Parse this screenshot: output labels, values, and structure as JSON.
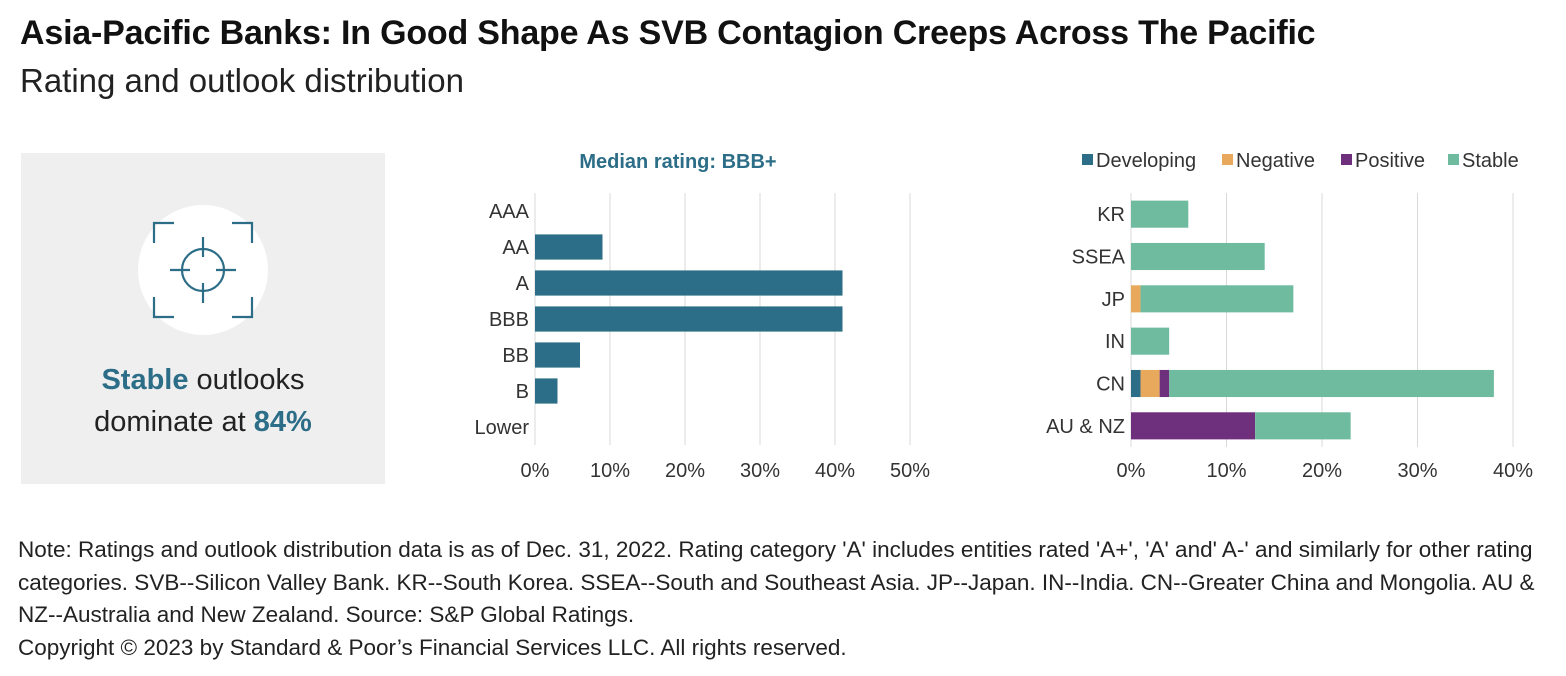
{
  "title": "Asia-Pacific Banks: In Good Shape As SVB Contagion Creeps Across The Pacific",
  "subtitle": "Rating and outlook distribution",
  "callout": {
    "icon": "crosshair-target-icon",
    "highlight": "Stable",
    "text_mid": " outlooks",
    "text_line2": "dominate at ",
    "value": "84%"
  },
  "colors": {
    "developing": "#2c6d87",
    "negative": "#e8a95c",
    "positive": "#6e2f7d",
    "stable": "#6fbba0",
    "gridline": "#d9d9d9",
    "callout_bg": "#efefef"
  },
  "chart_data": [
    {
      "type": "bar",
      "orientation": "horizontal",
      "title": "Median rating: BBB+",
      "categories": [
        "AAA",
        "AA",
        "A",
        "BBB",
        "BB",
        "B",
        "Lower"
      ],
      "values": [
        0,
        9,
        41,
        41,
        6,
        3,
        0
      ],
      "xlim": [
        0,
        50
      ],
      "x_ticks": [
        "0%",
        "10%",
        "20%",
        "30%",
        "40%",
        "50%"
      ],
      "x_tick_values": [
        0,
        10,
        20,
        30,
        40,
        50
      ],
      "grid": "vertical"
    },
    {
      "type": "bar",
      "orientation": "horizontal",
      "stacked": true,
      "categories": [
        "KR",
        "SSEA",
        "JP",
        "IN",
        "CN",
        "AU & NZ"
      ],
      "series": [
        {
          "name": "Developing",
          "values": [
            0,
            0,
            0,
            0,
            1,
            0
          ]
        },
        {
          "name": "Negative",
          "values": [
            0,
            0,
            1,
            0,
            2,
            0
          ]
        },
        {
          "name": "Positive",
          "values": [
            0,
            0,
            0,
            0,
            1,
            13
          ]
        },
        {
          "name": "Stable",
          "values": [
            6,
            14,
            16,
            4,
            34,
            10
          ]
        }
      ],
      "xlim": [
        0,
        40
      ],
      "x_ticks": [
        "0%",
        "10%",
        "20%",
        "30%",
        "40%"
      ],
      "x_tick_values": [
        0,
        10,
        20,
        30,
        40
      ],
      "legend": "top",
      "grid": "vertical"
    }
  ],
  "note": "Note: Ratings and outlook distribution data is as of Dec. 31, 2022. Rating category 'A' includes entities rated 'A+', 'A' and' A-' and similarly for other rating categories. SVB--Silicon Valley Bank. KR--South Korea. SSEA--South and Southeast Asia. JP--Japan. IN--India. CN--Greater China and Mongolia. AU & NZ--Australia and New Zealand. Source: S&P Global Ratings.",
  "copyright": "Copyright © 2023 by Standard & Poor’s Financial Services LLC. All rights reserved."
}
